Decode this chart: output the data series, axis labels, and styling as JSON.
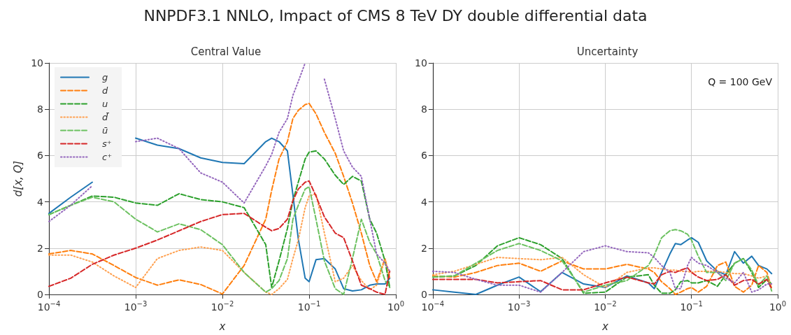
{
  "chart_data": [
    {
      "type": "line",
      "title": "NNPDF3.1 NNLO, Impact of CMS 8 TeV DY double differential data",
      "subtitle": "Central Value",
      "xlabel": "x",
      "ylabel": "d[x, Q]",
      "log": "x",
      "xlim": [
        0.0001,
        1
      ],
      "xticks": [
        {
          "value": 0.0001,
          "label": "10$^{−4}$"
        },
        {
          "value": 0.001,
          "label": "10$^{−3}$"
        },
        {
          "value": 0.01,
          "label": "10$^{−2}$"
        },
        {
          "value": 0.1,
          "label": "10$^{−1}$"
        },
        {
          "value": 1,
          "label": "10$^{0}$"
        }
      ],
      "ylim": [
        0,
        10
      ],
      "yticks": [
        0,
        2,
        4,
        6,
        8,
        10
      ],
      "grid": true,
      "legend": "top left",
      "x": [
        0.0001,
        0.000178,
        0.000316,
        0.000562,
        0.001,
        0.00178,
        0.00316,
        0.00562,
        0.01,
        0.0178,
        0.0316,
        0.037,
        0.045,
        0.0562,
        0.065,
        0.075,
        0.09,
        0.1,
        0.12,
        0.15,
        0.2,
        0.25,
        0.316,
        0.4,
        0.5,
        0.6,
        0.75,
        0.85
      ],
      "series": [
        {
          "name": "g",
          "color": "#1f77b4",
          "line_style": "solid",
          "values": [
            3.5,
            4.2,
            4.85,
            null,
            6.75,
            6.45,
            6.3,
            5.9,
            5.7,
            5.65,
            6.6,
            6.75,
            6.6,
            6.2,
            4.3,
            2.4,
            0.7,
            0.55,
            1.5,
            1.55,
            1.1,
            0.25,
            0.15,
            0.2,
            0.4,
            0.45,
            0.45,
            0.7
          ]
        },
        {
          "name": "d",
          "color": "#ff7f0e",
          "line_style": "dashed",
          "values": [
            1.75,
            1.9,
            1.75,
            1.25,
            0.73,
            0.4,
            0.63,
            0.43,
            0.02,
            1.25,
            3.25,
            4.5,
            5.85,
            6.6,
            7.6,
            7.95,
            8.2,
            8.25,
            7.8,
            7.0,
            6.1,
            5.1,
            3.95,
            2.65,
            1.25,
            0.55,
            1.55,
            0.7
          ]
        },
        {
          "name": "u",
          "color": "#2ca02c",
          "line_style": "dashed",
          "values": [
            3.45,
            3.85,
            4.25,
            4.2,
            3.95,
            3.85,
            4.35,
            4.1,
            4.0,
            3.75,
            2.15,
            0.3,
            1.45,
            2.85,
            4.05,
            4.85,
            5.85,
            6.15,
            6.2,
            5.85,
            5.15,
            4.75,
            5.1,
            4.9,
            3.25,
            2.65,
            1.45,
            0.3
          ]
        },
        {
          "name": "d̄",
          "color": "#ffa04f",
          "line_style": "dotted",
          "values": [
            1.7,
            1.7,
            1.4,
            0.8,
            0.3,
            1.55,
            1.9,
            2.05,
            1.9,
            0.95,
            0.1,
            0,
            0.25,
            0.65,
            1.55,
            2.35,
            3.75,
            4.25,
            4.35,
            2.65,
            0.55,
            0.7,
            1.25,
            0.6,
            0.2,
            0.4,
            1.5,
            0.85
          ]
        },
        {
          "name": "ū",
          "color": "#6cc160",
          "line_style": "dashed",
          "values": [
            3.45,
            3.85,
            4.2,
            4.0,
            3.25,
            2.7,
            3.05,
            2.8,
            2.15,
            0.95,
            0.1,
            0.25,
            0.6,
            1.55,
            3.25,
            3.85,
            4.55,
            4.65,
            3.25,
            1.45,
            0.25,
            0,
            1.55,
            3.25,
            2.25,
            1.75,
            0.6,
            0.3
          ]
        },
        {
          "name": "s⁺",
          "color": "#d62728",
          "line_style": "dashed",
          "values": [
            0.35,
            0.7,
            1.3,
            1.7,
            2.0,
            2.35,
            2.75,
            3.15,
            3.45,
            3.5,
            2.9,
            2.75,
            2.85,
            3.25,
            4.05,
            4.55,
            4.85,
            4.9,
            4.25,
            3.35,
            2.65,
            2.45,
            1.45,
            0.4,
            0.25,
            0.1,
            0,
            1.0
          ]
        },
        {
          "name": "c⁺",
          "color": "#9467bd",
          "line_style": "dotted",
          "values": [
            3.15,
            3.85,
            4.7,
            null,
            6.6,
            6.75,
            6.3,
            5.25,
            4.85,
            3.95,
            5.55,
            6.05,
            7.0,
            7.6,
            8.6,
            9.2,
            10,
            null,
            null,
            9.3,
            7.6,
            6.2,
            5.5,
            5.1,
            3.25,
            1.75,
            1.35,
            1.0
          ]
        }
      ]
    },
    {
      "type": "line",
      "subtitle": "Uncertainty",
      "xlabel": "x",
      "log": "x",
      "xlim": [
        0.0001,
        1
      ],
      "xticks": [
        {
          "value": 0.0001,
          "label": "10$^{−4}$"
        },
        {
          "value": 0.001,
          "label": "10$^{−3}$"
        },
        {
          "value": 0.01,
          "label": "10$^{−2}$"
        },
        {
          "value": 0.1,
          "label": "10$^{−1}$"
        },
        {
          "value": 1,
          "label": "10$^{0}$"
        }
      ],
      "ylim": [
        0,
        10
      ],
      "yticks": [
        0,
        2,
        4,
        6,
        8,
        10
      ],
      "grid": true,
      "annotations": [
        "Q = 100 GeV"
      ],
      "x": [
        0.0001,
        0.000178,
        0.000316,
        0.000562,
        0.001,
        0.00178,
        0.00316,
        0.00562,
        0.01,
        0.0178,
        0.0316,
        0.037,
        0.045,
        0.0562,
        0.065,
        0.075,
        0.09,
        0.1,
        0.12,
        0.15,
        0.2,
        0.25,
        0.316,
        0.4,
        0.5,
        0.6,
        0.75,
        0.85
      ],
      "series": [
        {
          "color": "#1f77b4",
          "line_style": "solid",
          "values": [
            0.2,
            0.1,
            0.0,
            0.4,
            0.75,
            0.12,
            0.95,
            0.45,
            0.3,
            0.8,
            0.5,
            0.25,
            0.95,
            1.75,
            2.2,
            2.15,
            2.35,
            2.45,
            2.25,
            1.45,
            1.0,
            0.85,
            1.85,
            1.35,
            1.65,
            1.25,
            1.1,
            0.9
          ]
        },
        {
          "color": "#ff7f0e",
          "line_style": "dashed",
          "values": [
            0.8,
            0.75,
            0.95,
            1.25,
            1.35,
            1.0,
            1.45,
            1.1,
            1.1,
            1.3,
            1.1,
            0.95,
            0.55,
            0.25,
            0,
            0.1,
            0.25,
            0.3,
            0.1,
            0.35,
            1.25,
            1.4,
            0.35,
            0.1,
            0.4,
            1.25,
            0.95,
            0.25
          ]
        },
        {
          "color": "#2ca02c",
          "line_style": "dashed",
          "values": [
            0.75,
            0.8,
            1.25,
            2.1,
            2.45,
            2.15,
            1.55,
            0.05,
            0.1,
            0.75,
            0.85,
            0.4,
            0.05,
            0.05,
            0.2,
            0.55,
            0.6,
            0.5,
            0.5,
            0.6,
            0.35,
            0.85,
            1.35,
            1.55,
            0.95,
            0.3,
            0.65,
            0.45
          ]
        },
        {
          "color": "#ffa04f",
          "line_style": "dotted",
          "values": [
            0.85,
            1.0,
            1.3,
            1.6,
            1.55,
            1.5,
            1.6,
            0.85,
            0.3,
            0.95,
            1.15,
            1.15,
            1.1,
            1.05,
            1.05,
            1.0,
            1.0,
            0.95,
            1.0,
            1.0,
            1.0,
            0.95,
            0.9,
            0.9,
            0.8,
            0.7,
            0.8,
            0.35
          ]
        },
        {
          "color": "#6cc160",
          "line_style": "dashed",
          "values": [
            0.75,
            0.8,
            1.35,
            1.9,
            2.2,
            1.9,
            1.45,
            0.1,
            0.4,
            0.6,
            1.25,
            1.7,
            2.45,
            2.75,
            2.8,
            2.75,
            2.6,
            2.35,
            1.65,
            0.95,
            0.95,
            0.6,
            1.35,
            1.55,
            1.05,
            0.4,
            0.8,
            0.15
          ]
        },
        {
          "color": "#d62728",
          "line_style": "dashed",
          "values": [
            0.65,
            0.65,
            0.65,
            0.5,
            0.55,
            0.6,
            0.2,
            0.2,
            0.5,
            0.75,
            0.5,
            0.45,
            0.85,
            1.0,
            0.95,
            1.05,
            1.15,
            0.95,
            0.75,
            0.6,
            0.65,
            0.85,
            0.4,
            0.6,
            0.65,
            0.45,
            0.65,
            0.25
          ]
        },
        {
          "color": "#9467bd",
          "line_style": "dotted",
          "values": [
            1.0,
            0.95,
            0.65,
            0.4,
            0.4,
            0.1,
            0.95,
            1.85,
            2.1,
            1.85,
            1.8,
            1.6,
            1.25,
            0.95,
            0.25,
            0.25,
            1.25,
            1.6,
            1.35,
            1.25,
            0.95,
            0.7,
            0.5,
            0.95,
            0.1,
            0.2,
            0.45,
            0.45
          ]
        }
      ]
    }
  ]
}
